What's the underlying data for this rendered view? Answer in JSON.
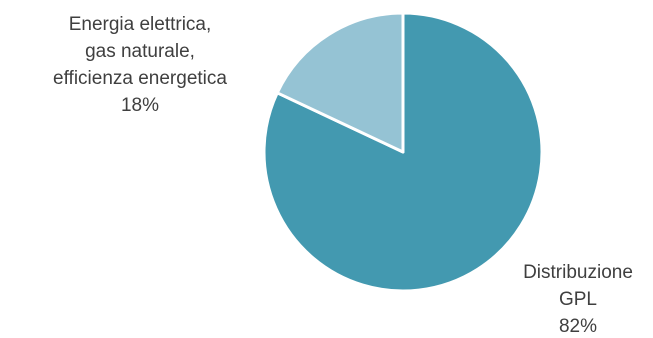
{
  "chart_data": {
    "type": "pie",
    "title": "",
    "start": "top, clockwise",
    "slices": [
      {
        "name_lines": [
          "Distribuzione",
          "GPL"
        ],
        "pct_label": "82%",
        "value": 82,
        "color": "#4399b0"
      },
      {
        "name_lines": [
          "Energia elettrica,",
          "gas naturale,",
          "efficienza energetica"
        ],
        "pct_label": "18%",
        "value": 18,
        "color": "#95c3d4"
      }
    ],
    "legend": "none",
    "edge_color": "#ffffff"
  }
}
